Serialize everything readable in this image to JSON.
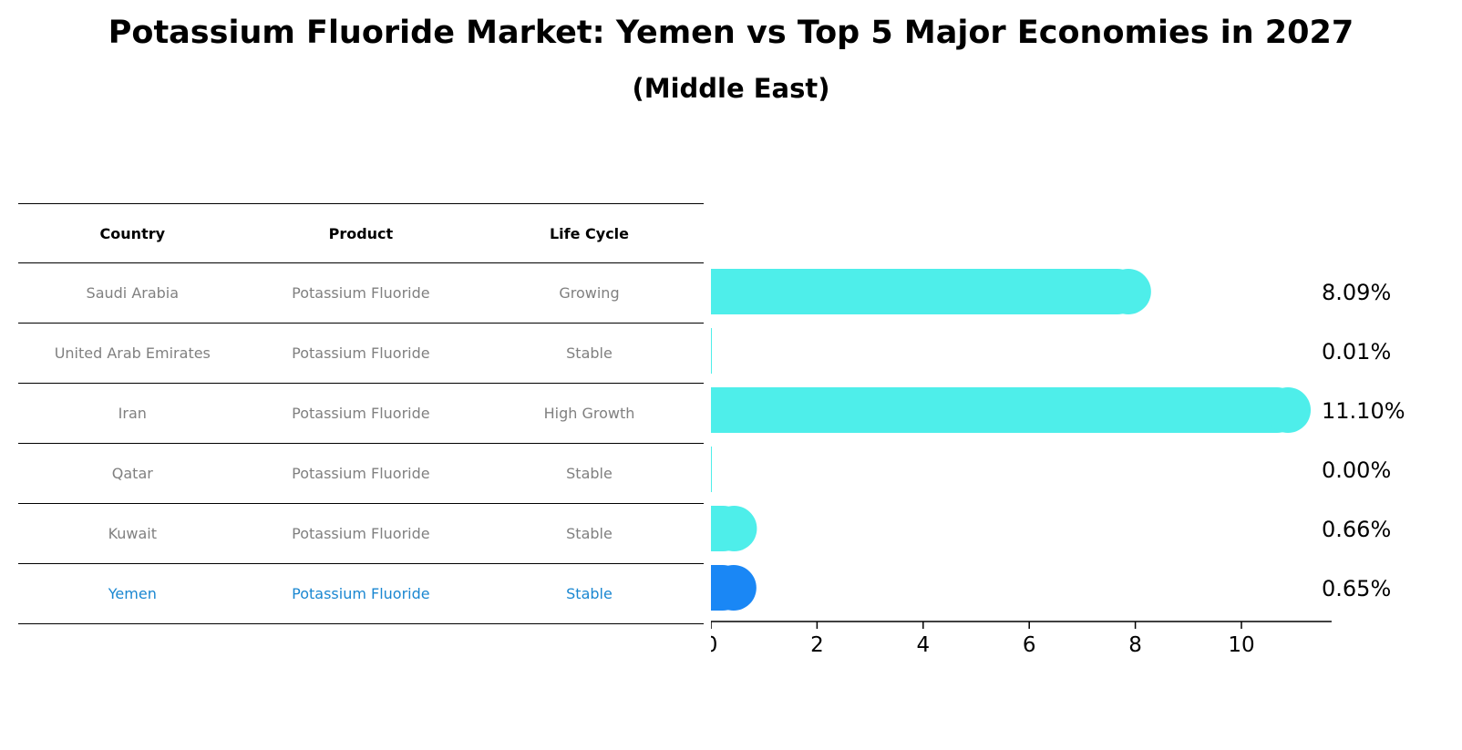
{
  "title": "Potassium Fluoride Market: Yemen vs Top 5 Major Economies in 2027",
  "subtitle": "(Middle East)",
  "table": {
    "headers": [
      "Country",
      "Product",
      "Life Cycle"
    ],
    "rows": [
      [
        "Saudi Arabia",
        "Potassium Fluoride",
        "Growing"
      ],
      [
        "United Arab Emirates",
        "Potassium Fluoride",
        "Stable"
      ],
      [
        "Iran",
        "Potassium Fluoride",
        "High Growth"
      ],
      [
        "Qatar",
        "Potassium Fluoride",
        "Stable"
      ],
      [
        "Kuwait",
        "Potassium Fluoride",
        "Stable"
      ],
      [
        "Yemen",
        "Potassium Fluoride",
        "Stable"
      ]
    ],
    "highlight_row": 5,
    "highlight_color": "#1a87d1"
  },
  "chart_data": {
    "type": "bar",
    "orientation": "horizontal",
    "categories": [
      "Saudi Arabia",
      "United Arab Emirates",
      "Iran",
      "Qatar",
      "Kuwait",
      "Yemen"
    ],
    "values": [
      8.09,
      0.01,
      11.1,
      0.0,
      0.66,
      0.65
    ],
    "value_labels": [
      "8.09%",
      "0.01%",
      "11.10%",
      "0.00%",
      "0.66%",
      "0.65%"
    ],
    "xlim": [
      0,
      11.7
    ],
    "xticks": [
      0,
      2,
      4,
      6,
      8,
      10
    ],
    "colors": [
      "#4eeeea",
      "#4eeeea",
      "#4eeeea",
      "#4eeeea",
      "#4eeeea",
      "#1a87f5"
    ],
    "grid": false
  }
}
